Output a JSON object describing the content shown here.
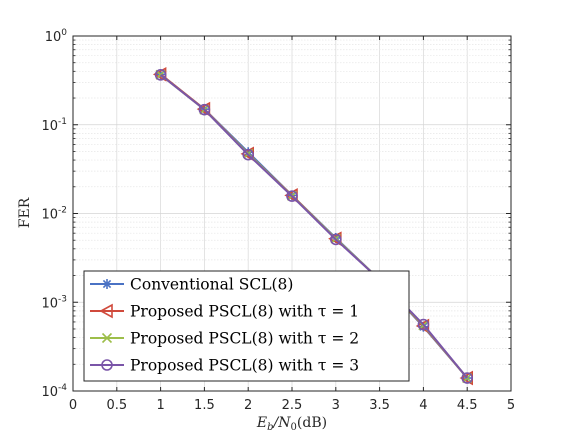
{
  "chart_data": {
    "type": "line",
    "title": "",
    "xlabel_parts": [
      "E",
      "b",
      "/N",
      "0",
      "(dB)"
    ],
    "ylabel": "FER",
    "xlim": [
      0,
      5
    ],
    "ylim": [
      0.0001,
      1
    ],
    "yscale": "log",
    "xticks": [
      0,
      0.5,
      1,
      1.5,
      2,
      2.5,
      3,
      3.5,
      4,
      4.5,
      5
    ],
    "xtick_labels": [
      "0",
      "0.5",
      "1",
      "1.5",
      "2",
      "2.5",
      "3",
      "3.5",
      "4",
      "4.5",
      "5"
    ],
    "yticks": [
      {
        "value": 1,
        "base": "10",
        "exp": "0"
      },
      {
        "value": 0.1,
        "base": "10",
        "exp": "-1"
      },
      {
        "value": 0.01,
        "base": "10",
        "exp": "-2"
      },
      {
        "value": 0.001,
        "base": "10",
        "exp": "-3"
      },
      {
        "value": 0.0001,
        "base": "10",
        "exp": "-4"
      }
    ],
    "grid": true,
    "legend_position": "bottom-left",
    "x": [
      1,
      1.5,
      2,
      2.5,
      3,
      3.5,
      4,
      4.5
    ],
    "series": [
      {
        "name": "Conventional SCL(8)",
        "color": "#4a72c4",
        "marker": "asterisk",
        "values": [
          0.37,
          0.15,
          0.049,
          0.016,
          0.0053,
          0.0018,
          0.00053,
          0.00014
        ]
      },
      {
        "name": "Proposed PSCL(8) with τ = 1",
        "color": "#d04a3c",
        "marker": "triangle-left",
        "values": [
          0.37,
          0.15,
          0.047,
          0.016,
          0.0052,
          0.0018,
          0.00054,
          0.00014
        ]
      },
      {
        "name": "Proposed PSCL(8) with τ = 2",
        "color": "#9dbe4a",
        "marker": "x",
        "values": [
          0.365,
          0.148,
          0.047,
          0.0158,
          0.0052,
          0.0018,
          0.00055,
          0.00014
        ]
      },
      {
        "name": "Proposed PSCL(8) with τ = 3",
        "color": "#7a55a8",
        "marker": "circle",
        "values": [
          0.365,
          0.148,
          0.046,
          0.0157,
          0.0051,
          0.0018,
          0.00056,
          0.00014
        ]
      }
    ]
  }
}
